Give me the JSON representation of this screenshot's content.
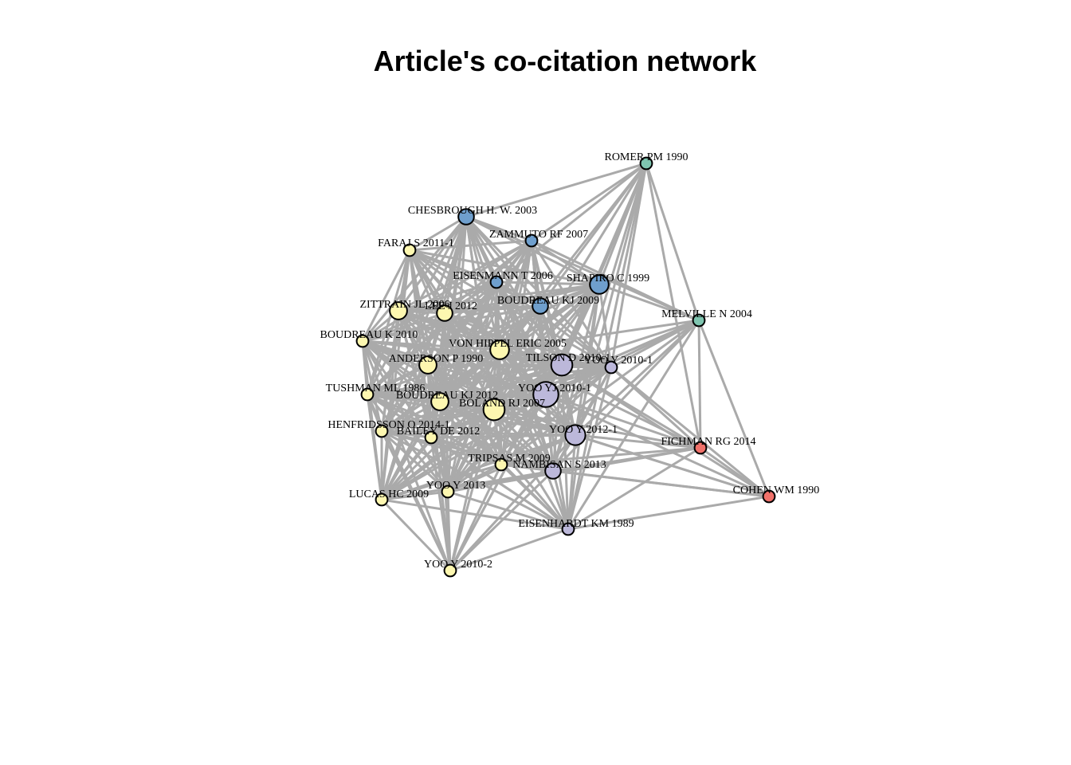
{
  "title": "Article's co-citation network",
  "colors": {
    "edge": "#aaaaaa",
    "node_stroke": "#000000",
    "cluster_blue": "#6f9fcd",
    "cluster_teal": "#7fc5b0",
    "cluster_yellow": "#fdf7b0",
    "cluster_purple": "#bcb8da",
    "cluster_red": "#f0716a"
  },
  "nodes": [
    {
      "id": "romer",
      "label": "ROMER PM 1990",
      "cluster": "cluster_teal",
      "weight": 1
    },
    {
      "id": "chesbrough",
      "label": "CHESBROUGH H. W. 2003",
      "cluster": "cluster_blue",
      "weight": 2
    },
    {
      "id": "zammuto",
      "label": "ZAMMUTO RF 2007",
      "cluster": "cluster_blue",
      "weight": 1
    },
    {
      "id": "faraj",
      "label": "FARAJ S 2011-1",
      "cluster": "cluster_yellow",
      "weight": 1
    },
    {
      "id": "eisenmann",
      "label": "EISENMANN T 2006",
      "cluster": "cluster_blue",
      "weight": 1
    },
    {
      "id": "shapiro",
      "label": "SHAPIRO C 1999",
      "cluster": "cluster_blue",
      "weight": 4
    },
    {
      "id": "zittrain",
      "label": "ZITTRAIN JL 2006",
      "cluster": "cluster_yellow",
      "weight": 3
    },
    {
      "id": "lee",
      "label": "LEE J 2012",
      "cluster": "cluster_yellow",
      "weight": 2
    },
    {
      "id": "boudreau2009",
      "label": "BOUDREAU KJ 2009",
      "cluster": "cluster_blue",
      "weight": 2
    },
    {
      "id": "melville",
      "label": "MELVILLE N 2004",
      "cluster": "cluster_teal",
      "weight": 1
    },
    {
      "id": "boudreau2010",
      "label": "BOUDREAU K 2010",
      "cluster": "cluster_yellow",
      "weight": 1
    },
    {
      "id": "vonhippel",
      "label": "VON HIPPEL ERIC 2005",
      "cluster": "cluster_yellow",
      "weight": 4
    },
    {
      "id": "anderson",
      "label": "ANDERSON P 1990",
      "cluster": "cluster_yellow",
      "weight": 3
    },
    {
      "id": "tilson",
      "label": "TILSON D 2010-1",
      "cluster": "cluster_purple",
      "weight": 6
    },
    {
      "id": "yoo20101",
      "label": "YOO Y 2010-1",
      "cluster": "cluster_purple",
      "weight": 1
    },
    {
      "id": "tushman",
      "label": "TUSHMAN ML 1986",
      "cluster": "cluster_yellow",
      "weight": 1
    },
    {
      "id": "yooyj",
      "label": "YOO YJ 2010-1",
      "cluster": "cluster_purple",
      "weight": 10
    },
    {
      "id": "boudreau2012",
      "label": "BOUDREAU KJ 2012",
      "cluster": "cluster_yellow",
      "weight": 3
    },
    {
      "id": "boland",
      "label": "BOLAND RJ 2007",
      "cluster": "cluster_yellow",
      "weight": 6
    },
    {
      "id": "henfridsson",
      "label": "HENFRIDSSON O 2014-1",
      "cluster": "cluster_yellow",
      "weight": 1
    },
    {
      "id": "bailey",
      "label": "BAILEY DE 2012",
      "cluster": "cluster_yellow",
      "weight": 1
    },
    {
      "id": "yoo20121",
      "label": "YOO Y 2012-1",
      "cluster": "cluster_purple",
      "weight": 5
    },
    {
      "id": "fichman",
      "label": "FICHMAN RG 2014",
      "cluster": "cluster_red",
      "weight": 1
    },
    {
      "id": "tripsas",
      "label": "TRIPSAS M 2009",
      "cluster": "cluster_yellow",
      "weight": 1
    },
    {
      "id": "nambisan",
      "label": "NAMBISAN S 2013",
      "cluster": "cluster_purple",
      "weight": 2
    },
    {
      "id": "cohen",
      "label": "COHEN WM 1990",
      "cluster": "cluster_red",
      "weight": 1
    },
    {
      "id": "yoo2013",
      "label": "YOO Y 2013",
      "cluster": "cluster_yellow",
      "weight": 1
    },
    {
      "id": "lucas",
      "label": "LUCAS HC 2009",
      "cluster": "cluster_yellow",
      "weight": 1
    },
    {
      "id": "eisenhardt",
      "label": "EISENHARDT KM 1989",
      "cluster": "cluster_purple",
      "weight": 1
    },
    {
      "id": "yoo20102",
      "label": "YOO Y 2010-2",
      "cluster": "cluster_yellow",
      "weight": 1
    }
  ],
  "sparse_edges": [
    [
      "romer",
      "chesbrough"
    ],
    [
      "romer",
      "zammuto"
    ],
    [
      "romer",
      "shapiro"
    ],
    [
      "romer",
      "melville"
    ],
    [
      "romer",
      "boudreau2009"
    ],
    [
      "romer",
      "yooyj"
    ],
    [
      "romer",
      "tilson"
    ],
    [
      "romer",
      "fichman"
    ],
    [
      "romer",
      "yoo20121"
    ],
    [
      "romer",
      "nambisan"
    ],
    [
      "romer",
      "eisenhardt"
    ],
    [
      "romer",
      "vonhippel"
    ],
    [
      "romer",
      "boland"
    ],
    [
      "romer",
      "yoo20101"
    ],
    [
      "romer",
      "eisenmann"
    ],
    [
      "melville",
      "fichman"
    ],
    [
      "melville",
      "cohen"
    ],
    [
      "melville",
      "yooyj"
    ],
    [
      "melville",
      "tilson"
    ],
    [
      "melville",
      "shapiro"
    ],
    [
      "melville",
      "yoo20121"
    ],
    [
      "melville",
      "nambisan"
    ],
    [
      "melville",
      "eisenhardt"
    ],
    [
      "melville",
      "yoo20101"
    ],
    [
      "melville",
      "boland"
    ],
    [
      "melville",
      "tripsas"
    ],
    [
      "melville",
      "vonhippel"
    ],
    [
      "melville",
      "zammuto"
    ],
    [
      "melville",
      "chesbrough"
    ],
    [
      "melville",
      "bailey"
    ],
    [
      "fichman",
      "cohen"
    ],
    [
      "fichman",
      "yooyj"
    ],
    [
      "fichman",
      "tilson"
    ],
    [
      "fichman",
      "yoo20121"
    ],
    [
      "fichman",
      "nambisan"
    ],
    [
      "fichman",
      "eisenhardt"
    ],
    [
      "fichman",
      "boland"
    ],
    [
      "fichman",
      "tripsas"
    ],
    [
      "fichman",
      "yoo2013"
    ],
    [
      "fichman",
      "vonhippel"
    ],
    [
      "fichman",
      "yoo20101"
    ],
    [
      "cohen",
      "yooyj"
    ],
    [
      "cohen",
      "tilson"
    ],
    [
      "cohen",
      "yoo20121"
    ],
    [
      "cohen",
      "eisenhardt"
    ],
    [
      "cohen",
      "nambisan"
    ],
    [
      "cohen",
      "boland"
    ],
    [
      "cohen",
      "tripsas"
    ],
    [
      "cohen",
      "yoo20101"
    ],
    [
      "yoo20102",
      "lucas"
    ],
    [
      "yoo20102",
      "eisenhardt"
    ],
    [
      "yoo20102",
      "yoo2013"
    ],
    [
      "yoo20102",
      "tripsas"
    ],
    [
      "yoo20102",
      "boland"
    ],
    [
      "yoo20102",
      "yooyj"
    ],
    [
      "yoo20102",
      "tilson"
    ],
    [
      "yoo20102",
      "henfridsson"
    ],
    [
      "yoo20102",
      "tushman"
    ],
    [
      "yoo20102",
      "boudreau2010"
    ],
    [
      "yoo20102",
      "anderson"
    ],
    [
      "yoo20102",
      "bailey"
    ],
    [
      "yoo20102",
      "boudreau2012"
    ],
    [
      "yoo20102",
      "vonhippel"
    ],
    [
      "yoo20102",
      "yoo20121"
    ],
    [
      "yoo20102",
      "nambisan"
    ],
    [
      "eisenhardt",
      "lucas"
    ],
    [
      "eisenhardt",
      "yoo2013"
    ],
    [
      "eisenhardt",
      "tripsas"
    ],
    [
      "eisenhardt",
      "boland"
    ],
    [
      "eisenhardt",
      "yooyj"
    ],
    [
      "eisenhardt",
      "tilson"
    ],
    [
      "eisenhardt",
      "yoo20121"
    ],
    [
      "eisenhardt",
      "nambisan"
    ],
    [
      "eisenhardt",
      "henfridsson"
    ],
    [
      "eisenhardt",
      "bailey"
    ],
    [
      "eisenhardt",
      "anderson"
    ],
    [
      "eisenhardt",
      "vonhippel"
    ],
    [
      "eisenhardt",
      "shapiro"
    ],
    [
      "eisenhardt",
      "tushman"
    ],
    [
      "eisenhardt",
      "boudreau2012"
    ],
    [
      "eisenhardt",
      "yoo20101"
    ]
  ]
}
